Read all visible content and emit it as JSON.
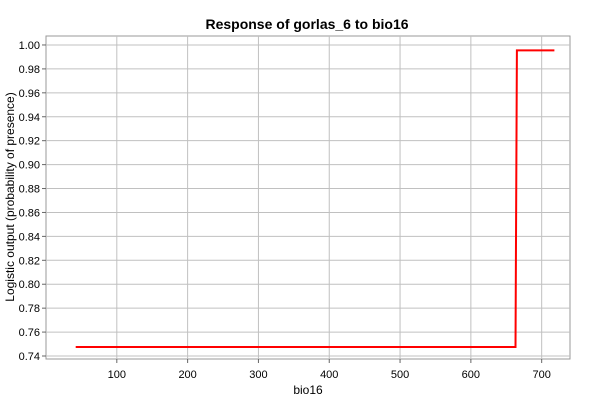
{
  "chart_data": {
    "type": "line",
    "title": "Response of gorlas_6 to bio16",
    "xlabel": "bio16",
    "ylabel": "Logistic output (probability of presence)",
    "xlim": [
      0,
      740
    ],
    "ylim": [
      0.7375,
      1.0075
    ],
    "x_ticks": [
      100,
      200,
      300,
      400,
      500,
      600,
      700
    ],
    "y_ticks": [
      0.74,
      0.76,
      0.78,
      0.8,
      0.82,
      0.84,
      0.86,
      0.88,
      0.9,
      0.92,
      0.94,
      0.96,
      0.98,
      1.0
    ],
    "grid": true,
    "series": [
      {
        "color": "#ff0000",
        "x": [
          42,
          663,
          665,
          718
        ],
        "y": [
          0.7475,
          0.7475,
          0.9955,
          0.9955
        ]
      }
    ]
  }
}
